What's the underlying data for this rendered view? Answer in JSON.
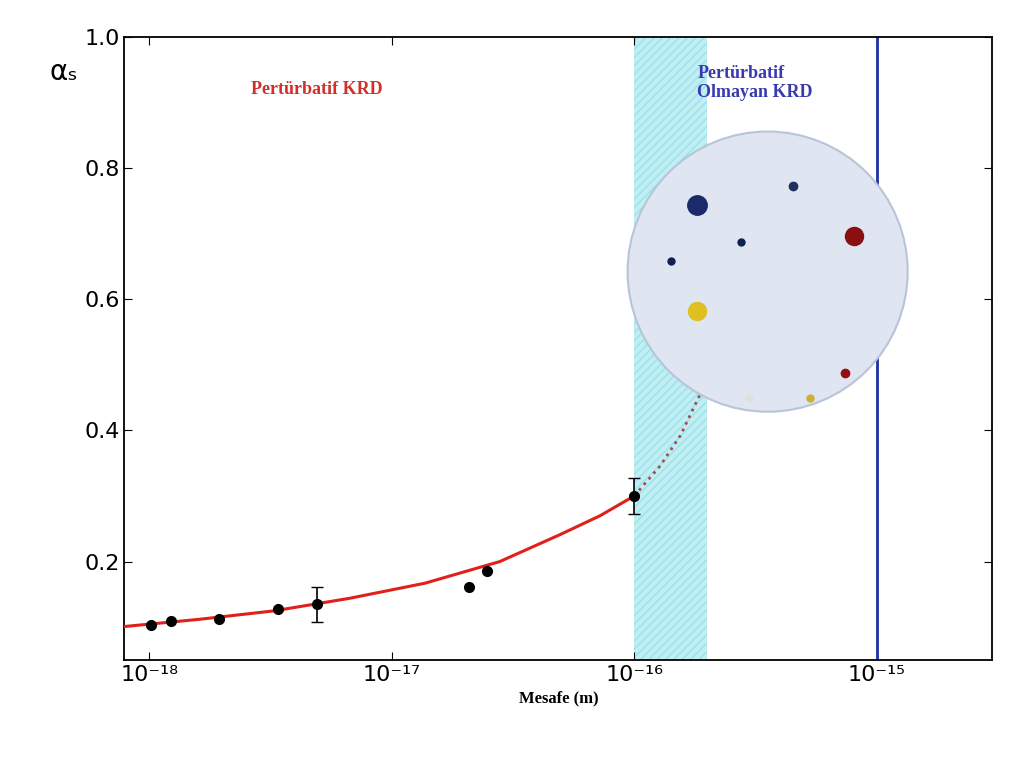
{
  "chart_data": {
    "type": "line",
    "log": "x",
    "xlabel": "Mesafe (m)",
    "ylabel": "αₛ",
    "xlim": [
      7.9e-19,
      3e-15
    ],
    "ylim": [
      0.05,
      1.0
    ],
    "xticks": [
      {
        "value": 1e-18,
        "label": "10⁻¹⁸"
      },
      {
        "value": 1e-17,
        "label": "10⁻¹⁷"
      },
      {
        "value": 1e-16,
        "label": "10⁻¹⁶"
      },
      {
        "value": 1e-15,
        "label": "10⁻¹⁵"
      }
    ],
    "yticks": [
      0.2,
      0.4,
      0.6,
      0.8,
      1.0
    ],
    "grid": false,
    "annotations": [
      {
        "text": "Pertürbatif KRD",
        "color": "#d0302a"
      },
      {
        "text": "Pertürbatif\nOlmayan KRD",
        "color": "#3a3ab0"
      }
    ],
    "regions": [
      {
        "x": [
          1e-16,
          2e-16
        ],
        "color": "#4fd0dc"
      }
    ],
    "vlines": [
      {
        "x": 1e-15,
        "color": "#1f2fa8"
      }
    ],
    "series": [
      {
        "type": "line",
        "color": "#e0201a",
        "line_style": "solid",
        "x": [
          7.9e-19,
          1.61e-18,
          3.29e-18,
          6.7e-18,
          1.37e-17,
          2.79e-17,
          4.94e-17,
          7.24e-17,
          1e-16
        ],
        "values": [
          0.101,
          0.112,
          0.125,
          0.144,
          0.167,
          0.2,
          0.241,
          0.27,
          0.3
        ]
      },
      {
        "type": "line",
        "color": "#a05050",
        "line_style": "dotted",
        "x": [
          1e-16,
          1.28e-16,
          1.55e-16,
          1.87e-16
        ],
        "values": [
          0.3,
          0.346,
          0.392,
          0.455
        ]
      },
      {
        "type": "scatter",
        "color": "#000000",
        "marker": "o",
        "x": [
          1.02e-18,
          1.23e-18,
          1.95e-18,
          3.41e-18,
          4.94e-18,
          2.08e-17,
          2.47e-17,
          1e-16
        ],
        "values": [
          0.103,
          0.11,
          0.112,
          0.127,
          0.135,
          0.162,
          0.185,
          0.3
        ],
        "errors": [
          null,
          null,
          null,
          null,
          0.027,
          null,
          null,
          0.028
        ]
      }
    ]
  }
}
